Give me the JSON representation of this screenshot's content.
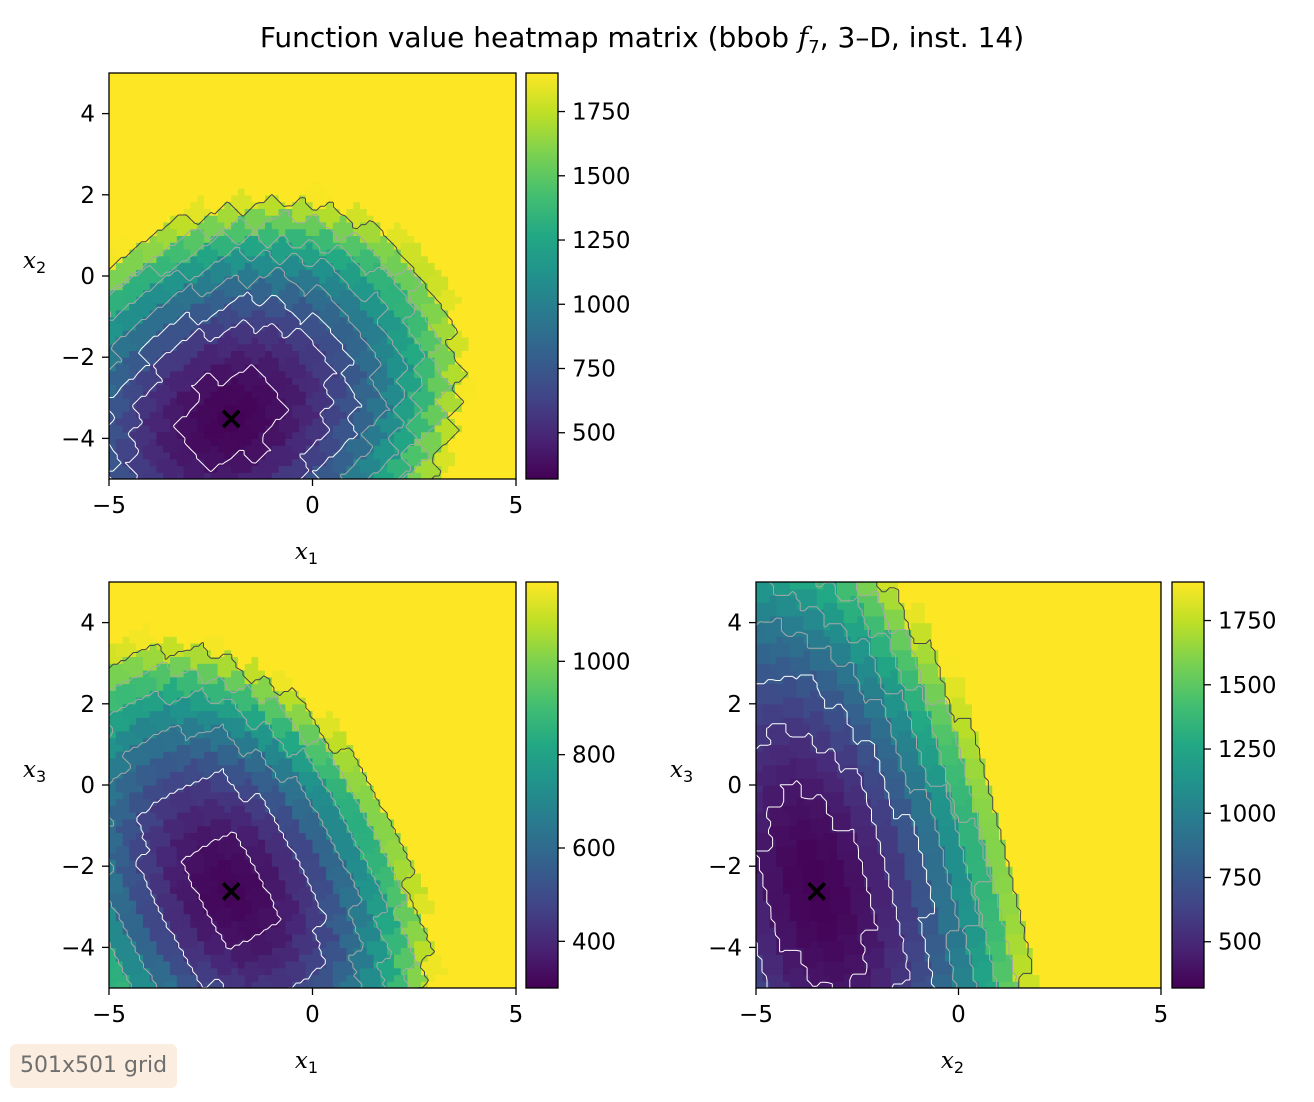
{
  "title": {
    "prefix": "Function value heatmap matrix (bbob ",
    "func_letter": "f",
    "func_index": "7",
    "suffix": ", 3–D, inst. 14)"
  },
  "annotation": "501x501 grid",
  "marker_symbol": "×",
  "colors": {
    "marker": "#ffffff",
    "contour_light": "#ffffff",
    "contour_mid": "#a8a8a8",
    "contour_dark": "#454545",
    "annotation_bg": "#fbeee1"
  },
  "chart_data": [
    {
      "type": "heatmap",
      "name": "x1-x2",
      "xlabel": {
        "symbol": "x",
        "sub": "1"
      },
      "ylabel": {
        "symbol": "x",
        "sub": "2"
      },
      "xlim": [
        -5,
        5
      ],
      "ylim": [
        -5,
        5
      ],
      "xticks": [
        -5,
        0,
        5
      ],
      "xtick_labels": [
        "−5",
        "0",
        "5"
      ],
      "yticks": [
        -4,
        -2,
        0,
        2,
        4
      ],
      "ytick_labels": [
        "−4",
        "−2",
        "0",
        "2",
        "4"
      ],
      "colorbar": {
        "min": 320,
        "max": 1900,
        "ticks": [
          500,
          750,
          1000,
          1250,
          1500,
          1750
        ],
        "tick_labels": [
          "500",
          "750",
          "1000",
          "1250",
          "1500",
          "1750"
        ]
      },
      "optimum": {
        "x": -2.0,
        "y": -3.5
      },
      "surface": {
        "base": 330,
        "k": 40,
        "angle_deg": 38,
        "a": 1.0,
        "b": 1.55
      },
      "contours": [
        {
          "level": 400,
          "style": "light"
        },
        {
          "level": 600,
          "style": "light"
        },
        {
          "level": 750,
          "style": "light"
        },
        {
          "level": 950,
          "style": "mid"
        },
        {
          "level": 1150,
          "style": "mid"
        },
        {
          "level": 1350,
          "style": "mid"
        },
        {
          "level": 1550,
          "style": "mid"
        },
        {
          "level": 1750,
          "style": "dark"
        }
      ]
    },
    {
      "type": "heatmap",
      "name": "x1-x3",
      "xlabel": {
        "symbol": "x",
        "sub": "1"
      },
      "ylabel": {
        "symbol": "x",
        "sub": "3"
      },
      "xlim": [
        -5,
        5
      ],
      "ylim": [
        -5,
        5
      ],
      "xticks": [
        -5,
        0,
        5
      ],
      "xtick_labels": [
        "−5",
        "0",
        "5"
      ],
      "yticks": [
        -4,
        -2,
        0,
        2,
        4
      ],
      "ytick_labels": [
        "−4",
        "−2",
        "0",
        "2",
        "4"
      ],
      "colorbar": {
        "min": 300,
        "max": 1170,
        "ticks": [
          400,
          600,
          800,
          1000
        ],
        "tick_labels": [
          "400",
          "600",
          "800",
          "1000"
        ]
      },
      "optimum": {
        "x": -2.0,
        "y": -2.6
      },
      "surface": {
        "base": 310,
        "k": 19,
        "angle_deg": -62,
        "a": 1.0,
        "b": 2.3
      },
      "contours": [
        {
          "level": 350,
          "style": "light"
        },
        {
          "level": 480,
          "style": "light"
        },
        {
          "level": 650,
          "style": "mid"
        },
        {
          "level": 800,
          "style": "mid"
        },
        {
          "level": 950,
          "style": "mid"
        },
        {
          "level": 1080,
          "style": "dark"
        }
      ]
    },
    {
      "type": "heatmap",
      "name": "x2-x3",
      "xlabel": {
        "symbol": "x",
        "sub": "2"
      },
      "ylabel": {
        "symbol": "x",
        "sub": "3"
      },
      "xlim": [
        -5,
        5
      ],
      "ylim": [
        -5,
        5
      ],
      "xticks": [
        -5,
        0,
        5
      ],
      "xtick_labels": [
        "−5",
        "0",
        "5"
      ],
      "yticks": [
        -4,
        -2,
        0,
        2,
        4
      ],
      "ytick_labels": [
        "−4",
        "−2",
        "0",
        "2",
        "4"
      ],
      "colorbar": {
        "min": 320,
        "max": 1900,
        "ticks": [
          500,
          750,
          1000,
          1250,
          1500,
          1750
        ],
        "tick_labels": [
          "500",
          "750",
          "1000",
          "1250",
          "1500",
          "1750"
        ]
      },
      "optimum": {
        "x": -3.5,
        "y": -2.6
      },
      "surface": {
        "base": 330,
        "k": 14,
        "angle_deg": -76,
        "a": 1.0,
        "b": 4.5
      },
      "contours": [
        {
          "level": 420,
          "style": "light"
        },
        {
          "level": 560,
          "style": "light"
        },
        {
          "level": 750,
          "style": "light"
        },
        {
          "level": 950,
          "style": "mid"
        },
        {
          "level": 1150,
          "style": "mid"
        },
        {
          "level": 1350,
          "style": "mid"
        },
        {
          "level": 1550,
          "style": "mid"
        },
        {
          "level": 1750,
          "style": "dark"
        }
      ]
    }
  ]
}
